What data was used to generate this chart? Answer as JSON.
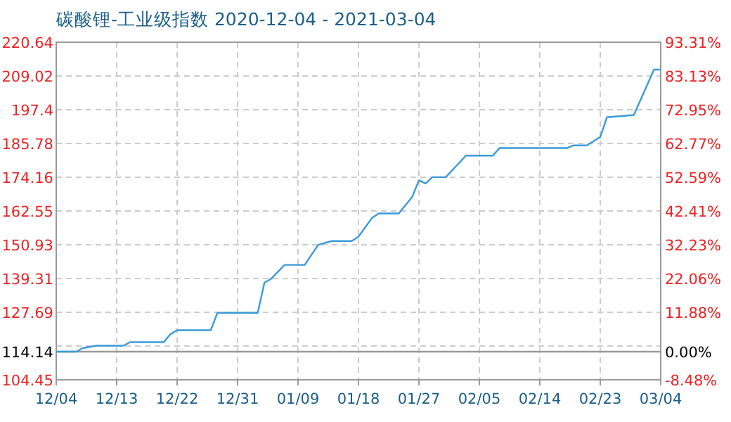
{
  "chart_data": {
    "type": "line",
    "title": "碳酸锂-工业级指数 2020-12-04 - 2021-03-04",
    "x": [
      "2020-12-04",
      "2020-12-07",
      "2020-12-08",
      "2020-12-10",
      "2020-12-14",
      "2020-12-15",
      "2020-12-20",
      "2020-12-21",
      "2020-12-22",
      "2020-12-27",
      "2020-12-28",
      "2021-01-03",
      "2021-01-04",
      "2021-01-05",
      "2021-01-07",
      "2021-01-10",
      "2021-01-12",
      "2021-01-14",
      "2021-01-17",
      "2021-01-18",
      "2021-01-20",
      "2021-01-21",
      "2021-01-24",
      "2021-01-26",
      "2021-01-27",
      "2021-01-28",
      "2021-01-29",
      "2021-01-31",
      "2021-02-03",
      "2021-02-07",
      "2021-02-08",
      "2021-02-18",
      "2021-02-19",
      "2021-02-21",
      "2021-02-23",
      "2021-02-24",
      "2021-02-28",
      "2021-03-03",
      "2021-03-04"
    ],
    "series": [
      {
        "color": "#3a9ad9",
        "values": [
          114.14,
          114.14,
          115.4,
          116.2,
          116.2,
          117.4,
          117.4,
          120.1,
          121.5,
          121.5,
          127.5,
          127.5,
          137.9,
          139.2,
          144.0,
          144.0,
          150.9,
          152.2,
          152.2,
          153.7,
          160.1,
          161.7,
          161.7,
          167.4,
          173.1,
          172.0,
          174.2,
          174.2,
          181.6,
          181.6,
          184.2,
          184.2,
          185.1,
          185.1,
          188.0,
          194.8,
          195.6,
          211.2,
          211.2
        ]
      }
    ],
    "xlim": [
      "2020-12-04",
      "2021-03-04"
    ],
    "xticks": [
      {
        "value": "2020-12-04",
        "label": "12/04"
      },
      {
        "value": "2020-12-13",
        "label": "12/13"
      },
      {
        "value": "2020-12-22",
        "label": "12/22"
      },
      {
        "value": "2020-12-31",
        "label": "12/31"
      },
      {
        "value": "2021-01-09",
        "label": "01/09"
      },
      {
        "value": "2021-01-18",
        "label": "01/18"
      },
      {
        "value": "2021-01-27",
        "label": "01/27"
      },
      {
        "value": "2021-02-05",
        "label": "02/05"
      },
      {
        "value": "2021-02-14",
        "label": "02/14"
      },
      {
        "value": "2021-02-23",
        "label": "02/23"
      },
      {
        "value": "2021-03-04",
        "label": "03/04"
      }
    ],
    "ylim": [
      104.45,
      220.64
    ],
    "yticks": [
      104.45,
      114.14,
      {
        "value": 116.07,
        "label": null
      },
      127.69,
      139.31,
      150.93,
      162.55,
      174.16,
      185.78,
      197.4,
      209.02,
      220.64
    ],
    "y2lim": [
      -8.48,
      93.31
    ],
    "y2ticks": [
      {
        "value": -8.48,
        "label": "-8.48%"
      },
      {
        "value": 0,
        "label": "0.00%"
      },
      {
        "value": 11.88,
        "label": "11.88%"
      },
      {
        "value": 22.06,
        "label": "22.06%"
      },
      {
        "value": 32.23,
        "label": "32.23%"
      },
      {
        "value": 42.41,
        "label": "42.41%"
      },
      {
        "value": 52.59,
        "label": "52.59%"
      },
      {
        "value": 62.77,
        "label": "62.77%"
      },
      {
        "value": 72.95,
        "label": "72.95%"
      },
      {
        "value": 83.13,
        "label": "83.13%"
      },
      {
        "value": 93.31,
        "label": "93.31%"
      }
    ],
    "ref_lines": [
      {
        "axis": "y",
        "value": 114.14,
        "color": "#999999"
      }
    ],
    "grid": true,
    "line_style": "solid",
    "marker": "none"
  }
}
